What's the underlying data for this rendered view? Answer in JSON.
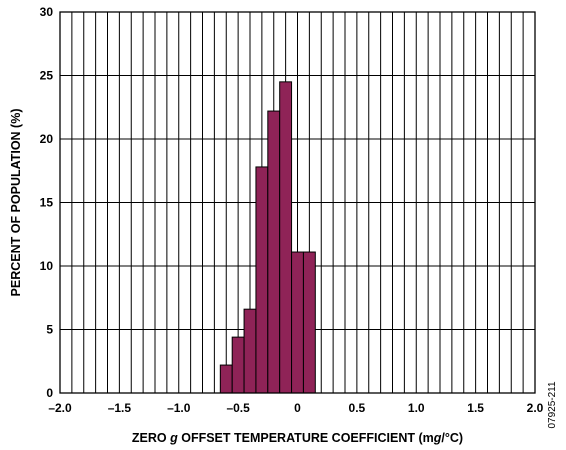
{
  "chart_data": {
    "type": "bar",
    "title": "",
    "xlabel_parts": [
      "ZERO ",
      "g",
      " OFFSET TEMPERATURE COEFFICIENT (m",
      "g",
      "/°C)"
    ],
    "ylabel": "PERCENT OF POPULATION (%)",
    "xlim": [
      -2.0,
      2.0
    ],
    "ylim": [
      0,
      30
    ],
    "x_ticks": [
      -2.0,
      -1.5,
      -1.0,
      -0.5,
      0,
      0.5,
      1.0,
      1.5,
      2.0
    ],
    "x_tick_labels": [
      "–2.0",
      "–1.5",
      "–1.0",
      "–0.5",
      "0",
      "0.5",
      "1.0",
      "1.5",
      "2.0"
    ],
    "y_ticks": [
      0,
      5,
      10,
      15,
      20,
      25,
      30
    ],
    "y_tick_labels": [
      "0",
      "5",
      "10",
      "15",
      "20",
      "25",
      "30"
    ],
    "grid": true,
    "bar_color": "#8f2357",
    "bins": [
      {
        "x0": -0.65,
        "x1": -0.55,
        "value": 2.2
      },
      {
        "x0": -0.55,
        "x1": -0.45,
        "value": 4.4
      },
      {
        "x0": -0.45,
        "x1": -0.35,
        "value": 6.6
      },
      {
        "x0": -0.35,
        "x1": -0.25,
        "value": 17.8
      },
      {
        "x0": -0.25,
        "x1": -0.15,
        "value": 22.2
      },
      {
        "x0": -0.15,
        "x1": -0.05,
        "value": 24.5
      },
      {
        "x0": -0.05,
        "x1": 0.05,
        "value": 11.1
      },
      {
        "x0": 0.05,
        "x1": 0.15,
        "value": 11.1
      }
    ]
  },
  "figure_id": "07925-211"
}
